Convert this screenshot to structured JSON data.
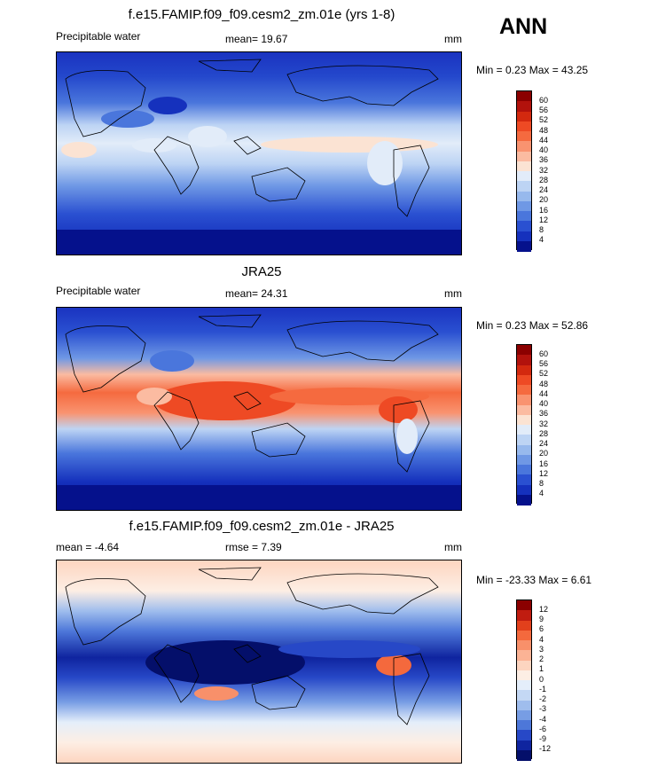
{
  "season": "ANN",
  "panels": [
    {
      "title": "f.e15.FAMIP.f09_f09.cesm2_zm.01e (yrs 1-8)",
      "left_label": "Precipitable water",
      "center_label": "mean=  19.67",
      "right_label": "mm",
      "minmax": "Min =   0.23 Max =  43.25",
      "colorbar": {
        "ticks": [
          "60",
          "56",
          "52",
          "48",
          "44",
          "40",
          "36",
          "32",
          "28",
          "24",
          "20",
          "16",
          "12",
          "8",
          "4"
        ],
        "colors": [
          "#8b0000",
          "#b2120c",
          "#d3290f",
          "#ee4a24",
          "#f56a3f",
          "#f99370",
          "#fbbba1",
          "#fbe3d3",
          "#e2ecf9",
          "#bdd4f4",
          "#97b9ed",
          "#6f98e5",
          "#4a76dc",
          "#2a50d1",
          "#1531bd",
          "#05118c"
        ]
      }
    },
    {
      "title": "JRA25",
      "left_label": "Precipitable water",
      "center_label": "mean=  24.31",
      "right_label": "mm",
      "minmax": "Min =   0.23 Max =  52.86",
      "colorbar": {
        "ticks": [
          "60",
          "56",
          "52",
          "48",
          "44",
          "40",
          "36",
          "32",
          "28",
          "24",
          "20",
          "16",
          "12",
          "8",
          "4"
        ],
        "colors": [
          "#8b0000",
          "#b2120c",
          "#d3290f",
          "#ee4a24",
          "#f56a3f",
          "#f99370",
          "#fbbba1",
          "#fbe3d3",
          "#e2ecf9",
          "#bdd4f4",
          "#97b9ed",
          "#6f98e5",
          "#4a76dc",
          "#2a50d1",
          "#1531bd",
          "#05118c"
        ]
      }
    },
    {
      "title": "f.e15.FAMIP.f09_f09.cesm2_zm.01e - JRA25",
      "left_label": "mean =  -4.64",
      "center_label": "rmse =   7.39",
      "right_label": "mm",
      "minmax": "Min = -23.33 Max =   6.61",
      "colorbar": {
        "ticks": [
          "12",
          "9",
          "6",
          "4",
          "3",
          "2",
          "1",
          "0",
          "-1",
          "-2",
          "-3",
          "-4",
          "-6",
          "-9",
          "-12"
        ],
        "colors": [
          "#8b0000",
          "#c01c10",
          "#e2401c",
          "#f4693d",
          "#f8906a",
          "#fbb395",
          "#fdd5c0",
          "#fdeee4",
          "#e4eefa",
          "#c4d8f4",
          "#9fbded",
          "#779de4",
          "#4d77d9",
          "#2748c7",
          "#0f249f",
          "#040f6a"
        ]
      }
    }
  ]
}
